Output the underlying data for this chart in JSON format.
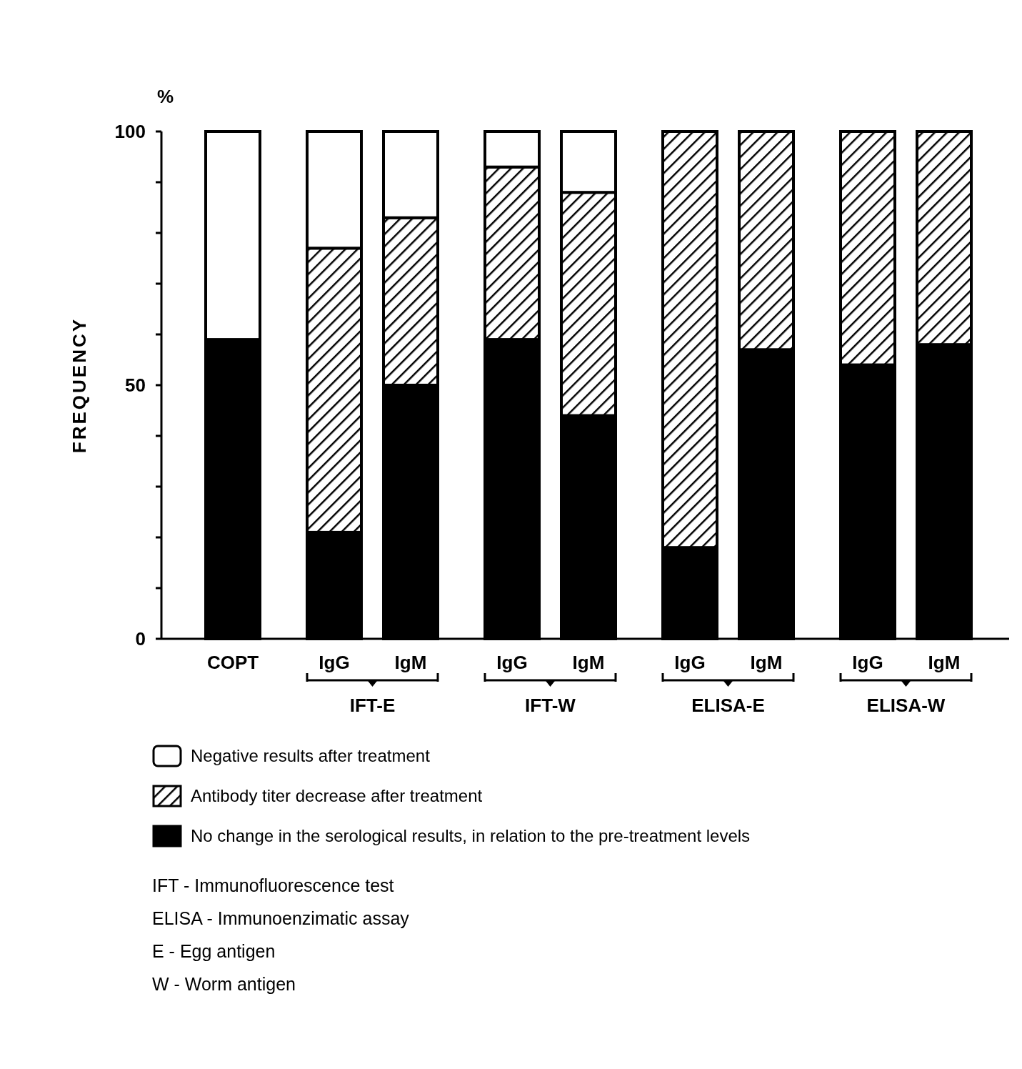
{
  "chart_data": {
    "type": "bar",
    "stacked": true,
    "ylabel": "FREQUENCY",
    "categories": [
      "COPT",
      "IgG",
      "IgM",
      "IgG",
      "IgM",
      "IgG",
      "IgM",
      "IgG",
      "IgM"
    ],
    "series": [
      {
        "name": "No change in the serological results, in relation to the pre-treatment levels",
        "color": "#000000",
        "values": [
          59,
          21,
          50,
          59,
          44,
          18,
          57,
          54,
          58
        ]
      },
      {
        "name": "Antibody titer decrease after treatment",
        "color": "#000000",
        "values": [
          0,
          56,
          33,
          34,
          44,
          82,
          43,
          46,
          42
        ]
      },
      {
        "name": "Negative results after treatment",
        "color": "#ffffff",
        "values": [
          41,
          23,
          17,
          7,
          12,
          0,
          0,
          0,
          0
        ]
      }
    ],
    "ylim": [
      0,
      100
    ],
    "yticks": [
      0,
      {
        "value": 10,
        "label": null
      },
      {
        "value": 20,
        "label": null
      },
      {
        "value": 30,
        "label": null
      },
      {
        "value": 40,
        "label": null
      },
      50,
      {
        "value": 60,
        "label": null
      },
      {
        "value": 70,
        "label": null
      },
      {
        "value": 80,
        "label": null
      },
      {
        "value": 90,
        "label": null
      },
      100
    ],
    "legend": "bottom",
    "annotations": [
      "IFT-E",
      "IFT-W",
      "ELISA-E",
      "ELISA-W",
      "%",
      "IFT - Immunofluorescence test",
      "ELISA - Immunoenzimatic assay",
      "E - Egg antigen",
      "W - Worm antigen"
    ]
  }
}
